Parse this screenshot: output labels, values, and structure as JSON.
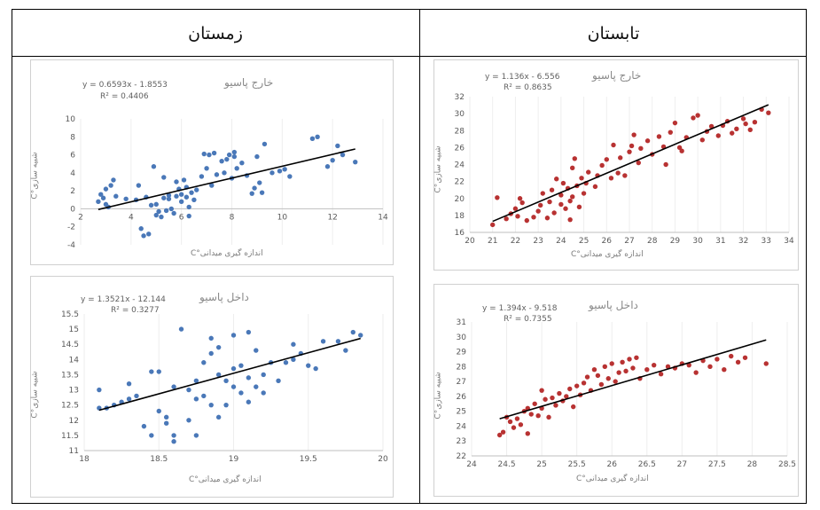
{
  "table": {
    "left_header": "زمستان",
    "right_header": "تابستان"
  },
  "chart_data": [
    {
      "id": "winter-outside",
      "type": "scatter",
      "title": "خارج پاسیو",
      "equation": "y = 0.6593x - 1.8553",
      "r2": "R² = 0.4406",
      "xlabel": "اندازه گیری میدانی°C",
      "ylabel": "شبیه سازی°C",
      "xlim": [
        2,
        14
      ],
      "ylim": [
        -4,
        10
      ],
      "xticks": [
        2,
        4,
        6,
        8,
        10,
        12,
        14
      ],
      "yticks": [
        -4,
        -2,
        0,
        2,
        4,
        6,
        8,
        10
      ],
      "color": "#4a78b8",
      "trend": {
        "slope": 0.6593,
        "intercept": -1.8553,
        "x_from": 2.7,
        "x_to": 12.9
      },
      "points": [
        [
          2.7,
          0.8
        ],
        [
          2.8,
          1.6
        ],
        [
          2.9,
          1.2
        ],
        [
          3.0,
          2.2
        ],
        [
          3.1,
          0.2
        ],
        [
          3.2,
          2.6
        ],
        [
          3.3,
          3.2
        ],
        [
          3.0,
          0.5
        ],
        [
          3.4,
          1.4
        ],
        [
          3.8,
          1.1
        ],
        [
          4.2,
          1.0
        ],
        [
          4.3,
          2.6
        ],
        [
          4.4,
          -2.2
        ],
        [
          4.5,
          -3.0
        ],
        [
          4.6,
          1.3
        ],
        [
          4.7,
          -2.8
        ],
        [
          4.8,
          0.4
        ],
        [
          4.9,
          4.7
        ],
        [
          5.0,
          -0.7
        ],
        [
          5.0,
          0.5
        ],
        [
          5.1,
          -0.3
        ],
        [
          5.2,
          -0.9
        ],
        [
          5.3,
          1.2
        ],
        [
          5.3,
          3.5
        ],
        [
          5.4,
          -0.2
        ],
        [
          5.5,
          1.5
        ],
        [
          5.5,
          1.1
        ],
        [
          5.6,
          0.0
        ],
        [
          5.7,
          -0.5
        ],
        [
          5.8,
          3.0
        ],
        [
          5.8,
          1.4
        ],
        [
          5.9,
          2.2
        ],
        [
          6.0,
          1.6
        ],
        [
          6.0,
          0.8
        ],
        [
          6.1,
          3.2
        ],
        [
          6.2,
          2.4
        ],
        [
          6.2,
          1.3
        ],
        [
          6.3,
          -0.8
        ],
        [
          6.3,
          0.2
        ],
        [
          6.4,
          1.8
        ],
        [
          6.5,
          1.0
        ],
        [
          6.6,
          2.1
        ],
        [
          6.8,
          3.6
        ],
        [
          6.9,
          6.1
        ],
        [
          7.0,
          4.5
        ],
        [
          7.1,
          6.0
        ],
        [
          7.2,
          2.6
        ],
        [
          7.3,
          6.2
        ],
        [
          7.4,
          3.8
        ],
        [
          7.6,
          5.3
        ],
        [
          7.7,
          4.0
        ],
        [
          7.8,
          5.5
        ],
        [
          7.9,
          6.0
        ],
        [
          8.0,
          3.4
        ],
        [
          8.1,
          5.8
        ],
        [
          8.1,
          6.3
        ],
        [
          8.2,
          4.5
        ],
        [
          8.4,
          5.1
        ],
        [
          8.6,
          3.7
        ],
        [
          8.8,
          1.7
        ],
        [
          8.9,
          2.3
        ],
        [
          9.0,
          5.8
        ],
        [
          9.1,
          2.9
        ],
        [
          9.2,
          1.8
        ],
        [
          9.3,
          7.2
        ],
        [
          9.6,
          4.0
        ],
        [
          9.9,
          4.2
        ],
        [
          10.1,
          4.4
        ],
        [
          10.3,
          3.6
        ],
        [
          11.2,
          7.8
        ],
        [
          11.4,
          8.0
        ],
        [
          11.8,
          4.7
        ],
        [
          12.0,
          5.4
        ],
        [
          12.2,
          7.0
        ],
        [
          12.4,
          6.0
        ],
        [
          12.9,
          5.2
        ]
      ]
    },
    {
      "id": "summer-outside",
      "type": "scatter",
      "title": "خارج پاسیو",
      "equation": "y = 1.136x - 6.556",
      "r2": "R² = 0.8635",
      "xlabel": "اندازه گیری میدانی°C",
      "ylabel": "شبیه سازی°C",
      "xlim": [
        20,
        34
      ],
      "ylim": [
        16,
        32
      ],
      "xticks": [
        20,
        21,
        22,
        23,
        24,
        25,
        26,
        27,
        28,
        29,
        30,
        31,
        32,
        33,
        34
      ],
      "yticks": [
        16,
        18,
        20,
        22,
        24,
        26,
        28,
        30,
        32
      ],
      "color": "#b83232",
      "trend": {
        "slope": 1.136,
        "intercept": -6.556,
        "x_from": 21.0,
        "x_to": 33.1
      },
      "points": [
        [
          21.0,
          16.9
        ],
        [
          21.2,
          20.1
        ],
        [
          21.6,
          17.6
        ],
        [
          21.8,
          18.2
        ],
        [
          22.0,
          18.8
        ],
        [
          22.1,
          17.9
        ],
        [
          22.2,
          20.0
        ],
        [
          22.3,
          19.5
        ],
        [
          22.5,
          17.4
        ],
        [
          22.8,
          17.8
        ],
        [
          23.0,
          18.5
        ],
        [
          23.1,
          19.2
        ],
        [
          23.2,
          20.6
        ],
        [
          23.4,
          17.7
        ],
        [
          23.5,
          19.6
        ],
        [
          23.6,
          21.0
        ],
        [
          23.7,
          18.3
        ],
        [
          23.8,
          22.3
        ],
        [
          24.0,
          20.4
        ],
        [
          24.0,
          19.3
        ],
        [
          24.1,
          21.8
        ],
        [
          24.2,
          18.8
        ],
        [
          24.3,
          21.2
        ],
        [
          24.4,
          19.7
        ],
        [
          24.4,
          17.5
        ],
        [
          24.5,
          20.2
        ],
        [
          24.5,
          23.6
        ],
        [
          24.6,
          24.7
        ],
        [
          24.7,
          21.5
        ],
        [
          24.8,
          19.0
        ],
        [
          24.9,
          22.4
        ],
        [
          25.0,
          20.6
        ],
        [
          25.1,
          21.8
        ],
        [
          25.2,
          23.1
        ],
        [
          25.5,
          21.4
        ],
        [
          25.6,
          22.7
        ],
        [
          25.8,
          23.9
        ],
        [
          26.0,
          24.6
        ],
        [
          26.2,
          22.4
        ],
        [
          26.3,
          26.3
        ],
        [
          26.5,
          23.0
        ],
        [
          26.6,
          24.8
        ],
        [
          26.8,
          22.7
        ],
        [
          27.0,
          25.5
        ],
        [
          27.1,
          26.2
        ],
        [
          27.2,
          27.5
        ],
        [
          27.4,
          24.2
        ],
        [
          27.5,
          25.9
        ],
        [
          27.8,
          26.8
        ],
        [
          28.0,
          25.2
        ],
        [
          28.3,
          27.3
        ],
        [
          28.5,
          26.1
        ],
        [
          28.6,
          24.0
        ],
        [
          28.8,
          27.8
        ],
        [
          29.0,
          28.9
        ],
        [
          29.2,
          26.0
        ],
        [
          29.3,
          25.6
        ],
        [
          29.5,
          27.2
        ],
        [
          29.8,
          29.5
        ],
        [
          30.0,
          29.8
        ],
        [
          30.2,
          26.9
        ],
        [
          30.4,
          27.9
        ],
        [
          30.6,
          28.5
        ],
        [
          30.9,
          27.4
        ],
        [
          31.1,
          28.6
        ],
        [
          31.3,
          29.1
        ],
        [
          31.5,
          27.7
        ],
        [
          31.7,
          28.2
        ],
        [
          32.0,
          29.4
        ],
        [
          32.1,
          28.8
        ],
        [
          32.3,
          28.1
        ],
        [
          32.5,
          29.0
        ],
        [
          32.8,
          30.5
        ],
        [
          33.1,
          30.1
        ]
      ]
    },
    {
      "id": "winter-inside",
      "type": "scatter",
      "title": "داخل پاسیو",
      "equation": "y = 1.3521x - 12.144",
      "r2": "R² = 0.3277",
      "xlabel": "اندازه گیری میدانی°C",
      "ylabel": "شبیه سازی°C",
      "xlim": [
        18,
        20
      ],
      "ylim": [
        11,
        15.5
      ],
      "xticks": [
        18,
        18.5,
        19,
        19.5,
        20
      ],
      "yticks": [
        11,
        11.5,
        12,
        12.5,
        13,
        13.5,
        14,
        14.5,
        15,
        15.5
      ],
      "color": "#4a78b8",
      "trend": {
        "slope": 1.3521,
        "intercept": -12.144,
        "x_from": 18.1,
        "x_to": 19.85
      },
      "points": [
        [
          18.1,
          12.4
        ],
        [
          18.1,
          13.0
        ],
        [
          18.15,
          12.4
        ],
        [
          18.2,
          12.5
        ],
        [
          18.25,
          12.6
        ],
        [
          18.3,
          13.2
        ],
        [
          18.3,
          12.7
        ],
        [
          18.35,
          12.8
        ],
        [
          18.4,
          11.8
        ],
        [
          18.45,
          11.5
        ],
        [
          18.45,
          13.6
        ],
        [
          18.5,
          12.3
        ],
        [
          18.5,
          13.6
        ],
        [
          18.55,
          12.1
        ],
        [
          18.55,
          11.9
        ],
        [
          18.6,
          13.1
        ],
        [
          18.6,
          11.5
        ],
        [
          18.6,
          11.3
        ],
        [
          18.65,
          15.0
        ],
        [
          18.7,
          13.0
        ],
        [
          18.7,
          12.0
        ],
        [
          18.75,
          11.5
        ],
        [
          18.75,
          13.3
        ],
        [
          18.75,
          12.7
        ],
        [
          18.8,
          13.9
        ],
        [
          18.8,
          12.8
        ],
        [
          18.85,
          12.5
        ],
        [
          18.85,
          14.7
        ],
        [
          18.85,
          14.2
        ],
        [
          18.9,
          12.1
        ],
        [
          18.9,
          13.5
        ],
        [
          18.9,
          14.4
        ],
        [
          18.95,
          12.5
        ],
        [
          18.95,
          13.3
        ],
        [
          19.0,
          14.8
        ],
        [
          19.0,
          13.7
        ],
        [
          19.0,
          13.1
        ],
        [
          19.05,
          12.9
        ],
        [
          19.05,
          13.8
        ],
        [
          19.1,
          12.6
        ],
        [
          19.1,
          13.4
        ],
        [
          19.1,
          14.9
        ],
        [
          19.15,
          14.3
        ],
        [
          19.15,
          13.1
        ],
        [
          19.2,
          12.9
        ],
        [
          19.2,
          13.5
        ],
        [
          19.25,
          13.9
        ],
        [
          19.3,
          13.3
        ],
        [
          19.35,
          13.9
        ],
        [
          19.4,
          14.5
        ],
        [
          19.4,
          14.0
        ],
        [
          19.45,
          14.2
        ],
        [
          19.5,
          13.8
        ],
        [
          19.55,
          13.7
        ],
        [
          19.6,
          14.6
        ],
        [
          19.7,
          14.6
        ],
        [
          19.75,
          14.3
        ],
        [
          19.8,
          14.9
        ],
        [
          19.85,
          14.8
        ]
      ]
    },
    {
      "id": "summer-inside",
      "type": "scatter",
      "title": "داخل پاسیو",
      "equation": "y = 1.394x - 9.518",
      "r2": "R² = 0.7355",
      "xlabel": "اندازه گیری میدانی°C",
      "ylabel": "شبیه سازی°C",
      "xlim": [
        24,
        28.5
      ],
      "ylim": [
        22,
        31
      ],
      "xticks": [
        24,
        24.5,
        25,
        25.5,
        26,
        26.5,
        27,
        27.5,
        28,
        28.5
      ],
      "yticks": [
        22,
        23,
        24,
        25,
        26,
        27,
        28,
        29,
        30,
        31
      ],
      "color": "#b83232",
      "trend": {
        "slope": 1.394,
        "intercept": -9.518,
        "x_from": 24.4,
        "x_to": 28.2
      },
      "points": [
        [
          24.4,
          23.4
        ],
        [
          24.45,
          23.6
        ],
        [
          24.5,
          24.6
        ],
        [
          24.55,
          24.3
        ],
        [
          24.6,
          23.9
        ],
        [
          24.65,
          24.5
        ],
        [
          24.7,
          24.1
        ],
        [
          24.75,
          25.0
        ],
        [
          24.8,
          23.5
        ],
        [
          24.8,
          25.2
        ],
        [
          24.85,
          24.8
        ],
        [
          24.9,
          25.5
        ],
        [
          24.95,
          24.7
        ],
        [
          25.0,
          25.2
        ],
        [
          25.0,
          26.4
        ],
        [
          25.05,
          25.8
        ],
        [
          25.1,
          24.6
        ],
        [
          25.15,
          25.9
        ],
        [
          25.2,
          25.4
        ],
        [
          25.25,
          26.2
        ],
        [
          25.3,
          25.7
        ],
        [
          25.35,
          26.0
        ],
        [
          25.4,
          26.5
        ],
        [
          25.45,
          25.3
        ],
        [
          25.5,
          26.7
        ],
        [
          25.55,
          26.1
        ],
        [
          25.6,
          26.9
        ],
        [
          25.65,
          27.3
        ],
        [
          25.7,
          26.4
        ],
        [
          25.75,
          27.8
        ],
        [
          25.8,
          27.4
        ],
        [
          25.85,
          26.8
        ],
        [
          25.9,
          28.0
        ],
        [
          25.95,
          27.2
        ],
        [
          26.0,
          28.2
        ],
        [
          26.05,
          27.0
        ],
        [
          26.1,
          27.6
        ],
        [
          26.15,
          28.3
        ],
        [
          26.2,
          27.7
        ],
        [
          26.25,
          28.5
        ],
        [
          26.3,
          27.9
        ],
        [
          26.35,
          28.6
        ],
        [
          26.4,
          27.2
        ],
        [
          26.5,
          27.8
        ],
        [
          26.6,
          28.1
        ],
        [
          26.7,
          27.5
        ],
        [
          26.8,
          28.0
        ],
        [
          26.9,
          27.9
        ],
        [
          27.0,
          28.2
        ],
        [
          27.1,
          28.1
        ],
        [
          27.2,
          27.6
        ],
        [
          27.3,
          28.4
        ],
        [
          27.4,
          28.0
        ],
        [
          27.5,
          28.5
        ],
        [
          27.6,
          27.8
        ],
        [
          27.7,
          28.7
        ],
        [
          27.8,
          28.3
        ],
        [
          27.9,
          28.6
        ],
        [
          28.2,
          28.2
        ]
      ]
    }
  ]
}
